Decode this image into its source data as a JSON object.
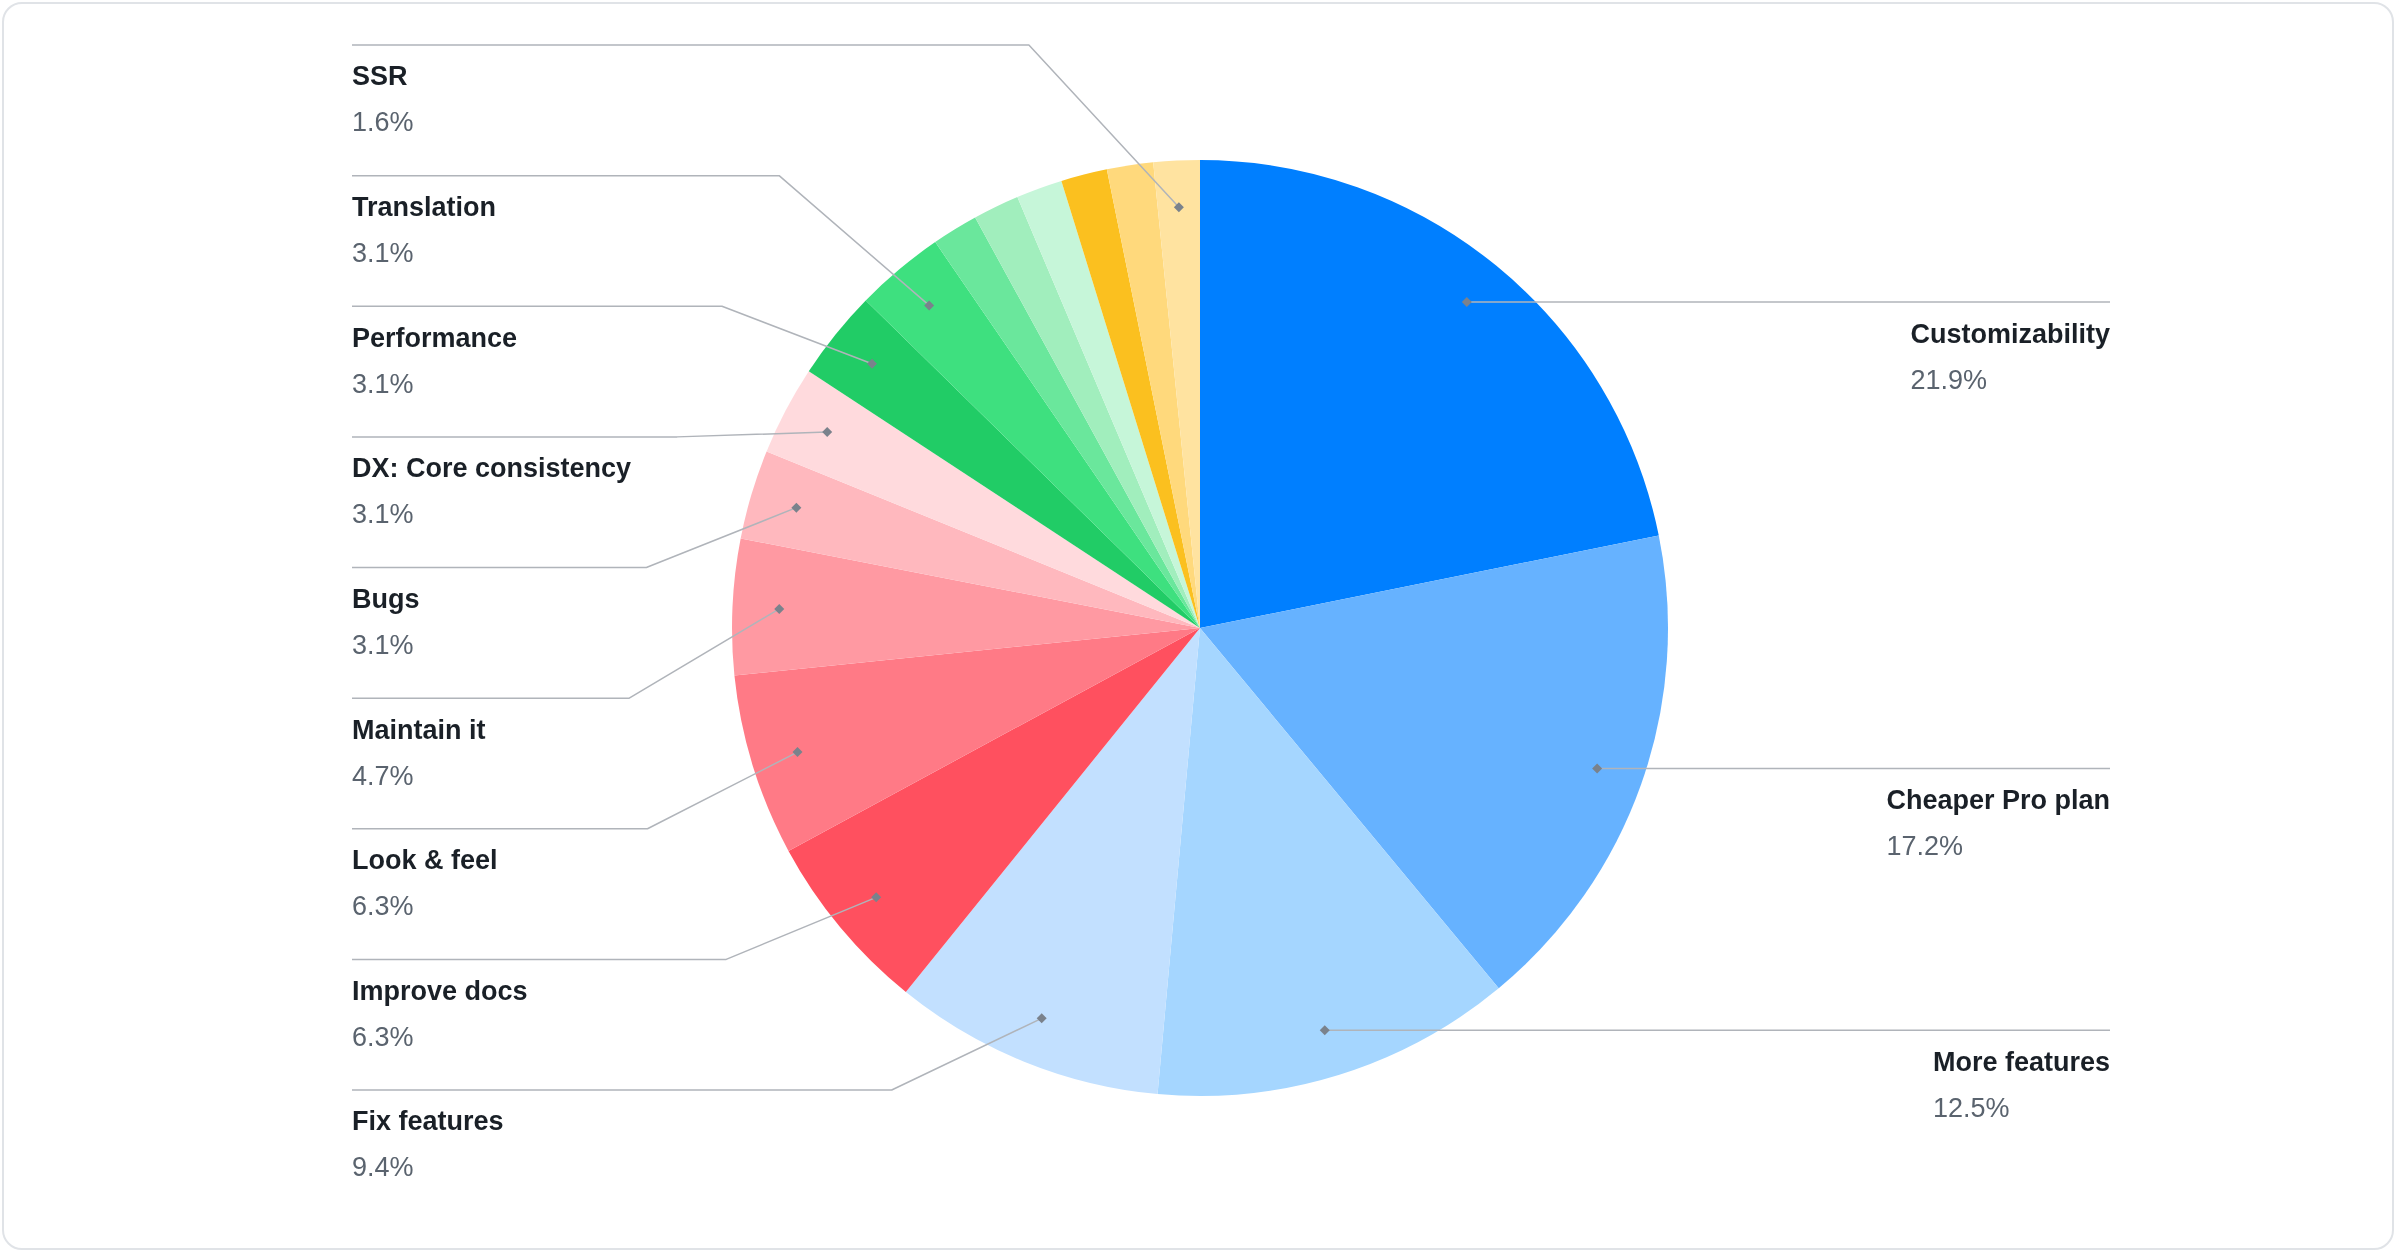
{
  "chart_data": {
    "type": "pie",
    "categories": [
      "Customizability",
      "Cheaper Pro plan",
      "More features",
      "Fix features",
      "Improve docs",
      "Look & feel",
      "Maintain it",
      "Bugs",
      "DX: Core consistency",
      "Performance",
      "Translation",
      null,
      null,
      null,
      null,
      null,
      "SSR"
    ],
    "values": [
      21.9,
      17.2,
      12.5,
      9.4,
      6.3,
      6.3,
      4.7,
      3.1,
      3.1,
      3.1,
      3.1,
      1.6,
      1.6,
      1.6,
      1.6,
      1.6,
      1.6
    ],
    "value_labels": [
      "21.9%",
      "17.2%",
      "12.5%",
      "9.4%",
      "6.3%",
      "6.3%",
      "4.7%",
      "3.1%",
      "3.1%",
      "3.1%",
      "3.1%",
      null,
      null,
      null,
      null,
      null,
      "1.6%"
    ],
    "colors": [
      "#007fff",
      "#66b2ff",
      "#a5d6ff",
      "#c2e0ff",
      "#ff505f",
      "#ff7a86",
      "#ff99a2",
      "#ffb8be",
      "#ffdadd",
      "#21cc66",
      "#3ee07f",
      "#6ae79c",
      "#a1eebd",
      "#c6f6d9",
      "#fbc01f",
      "#ffd97c",
      "#ffe3a0"
    ],
    "legend": false
  }
}
